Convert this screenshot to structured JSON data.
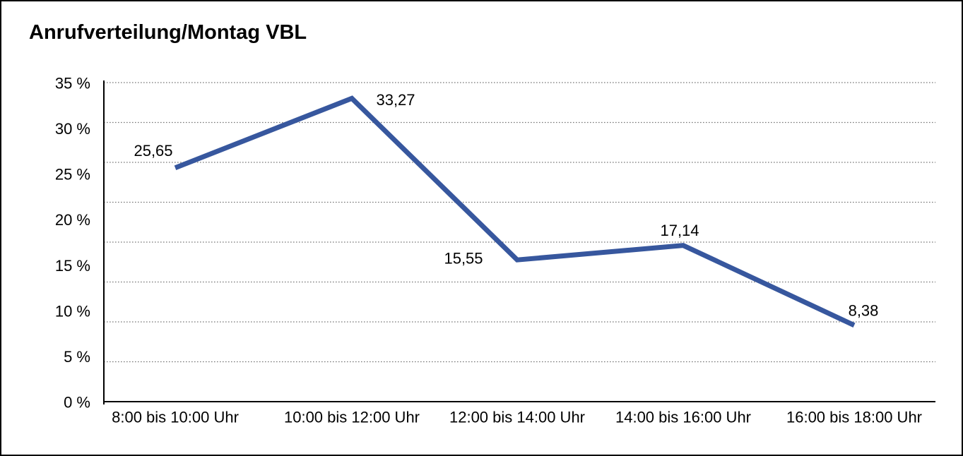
{
  "page": {
    "background_color": "#ffffff",
    "border_color": "#000000"
  },
  "chart_data": {
    "type": "line",
    "title": "Anrufverteilung/Montag VBL",
    "categories": [
      "8:00 bis 10:00 Uhr",
      "10:00 bis 12:00 Uhr",
      "12:00 bis 14:00 Uhr",
      "14:00 bis 16:00 Uhr",
      "16:00 bis 18:00 Uhr"
    ],
    "values": [
      25.65,
      33.27,
      15.55,
      17.14,
      8.38
    ],
    "value_labels": [
      "25,65",
      "33,27",
      "15,55",
      "17,14",
      "8,38"
    ],
    "y_tick_labels": [
      "35 %",
      "30 %",
      "25 %",
      "20 %",
      "15 %",
      "10 %",
      "5 %",
      "0 %"
    ],
    "ylim": [
      0,
      35
    ],
    "y_tick_step": 5,
    "xlabel": "",
    "ylabel": "",
    "grid": "horizontal-dotted",
    "legend_position": "none",
    "line_color": "#37579E",
    "gridline_color": "#777777",
    "axis_color": "#000000",
    "text_color": "#000000"
  }
}
